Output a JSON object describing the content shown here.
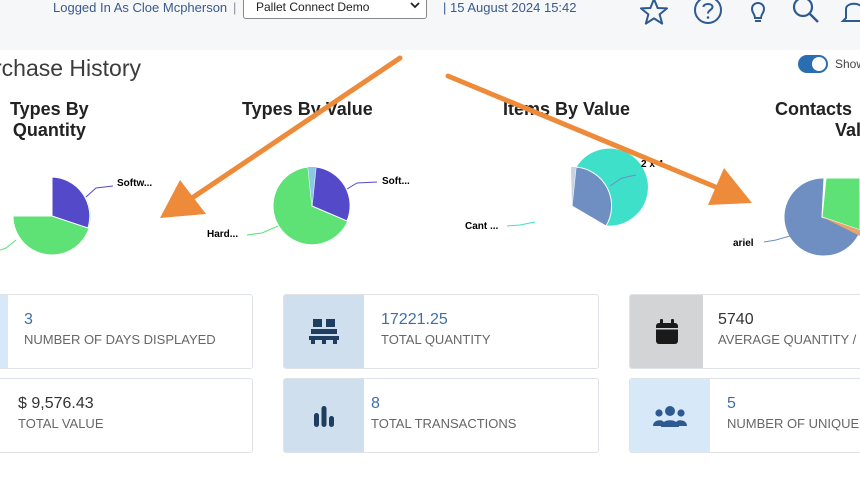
{
  "header": {
    "logged_in": "Logged In As Cloe Mcpherson",
    "separator": "|",
    "site_select": "Pallet Connect Demo",
    "datetime": "| 15 August 2024 15:42",
    "icons": [
      "star-icon",
      "help-icon",
      "lightbulb-icon",
      "search-icon",
      "bell-icon"
    ]
  },
  "page": {
    "title": "rchase History",
    "toggle_label": "Show",
    "toggle_on": true
  },
  "charts": [
    {
      "title_line1": "Types By",
      "title_line2": "Quantity",
      "labels": [
        "Softw..."
      ]
    },
    {
      "title_line1": "Types By Value",
      "labels": [
        "Soft...",
        "Hard..."
      ]
    },
    {
      "title_line1": "Items By Value",
      "labels": [
        "2 x 4...",
        "Cant ..."
      ]
    },
    {
      "title_line1": "Contacts",
      "title_line2": "Value",
      "labels": [
        "ariel"
      ]
    }
  ],
  "stats": {
    "days": {
      "value": "3",
      "label": "NUMBER OF DAYS DISPLAYED"
    },
    "total_qty": {
      "value": "17221.25",
      "label": "TOTAL QUANTITY"
    },
    "avg_qty": {
      "value": "5740",
      "label": "AVERAGE QUANTITY /"
    },
    "total_value": {
      "value": "$ 9,576.43",
      "label": "TOTAL VALUE"
    },
    "transactions": {
      "value": "8",
      "label": "TOTAL TRANSACTIONS"
    },
    "unique": {
      "value": "5",
      "label": "NUMBER OF UNIQUE"
    }
  },
  "colors": {
    "pie_green": "#5ee175",
    "pie_purple": "#5449c8",
    "pie_teal": "#3ee0c9",
    "pie_steel": "#6f8ec2",
    "accent_blue": "#3c6faa",
    "annotation_arrow": "#ee8b3a",
    "icon_bg_blue": "#cfdfee",
    "icon_bg_grey": "#d2d4d6",
    "icon_bg_light": "#d7e8f8"
  }
}
